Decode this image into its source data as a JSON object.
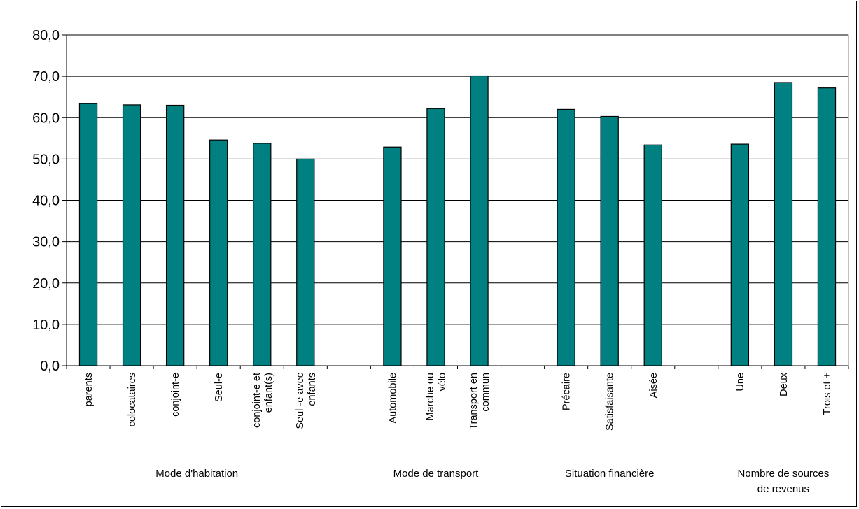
{
  "chart_data": {
    "type": "bar",
    "title": "",
    "xlabel": "",
    "ylabel": "",
    "ylim": [
      0,
      80
    ],
    "yticks": [
      "0,0",
      "10,0",
      "20,0",
      "30,0",
      "40,0",
      "50,0",
      "60,0",
      "70,0",
      "80,0"
    ],
    "grid": true,
    "legend": "none",
    "bar_color": "#008080",
    "groups": [
      {
        "name": "Mode d'habitation",
        "categories": [
          [
            "parents"
          ],
          [
            "colocataires"
          ],
          [
            "conjoint-e"
          ],
          [
            "Seul-e"
          ],
          [
            "conjoint-e et",
            "enfant(s)"
          ],
          [
            "Seul -e avec",
            "enfants"
          ]
        ],
        "values": [
          63.4,
          63.1,
          63.0,
          54.6,
          53.8,
          50.0
        ]
      },
      {
        "name": "Mode de transport",
        "categories": [
          [
            "Automobile"
          ],
          [
            "Marche ou",
            "vélo"
          ],
          [
            "Transport en",
            "commun"
          ]
        ],
        "values": [
          52.9,
          62.2,
          70.1
        ]
      },
      {
        "name": "Situation financière",
        "categories": [
          [
            "Précaire"
          ],
          [
            "Satisfaisante"
          ],
          [
            "Aisée"
          ]
        ],
        "values": [
          62.0,
          60.3,
          53.4
        ]
      },
      {
        "name": "Nombre de sources de revenus",
        "name_lines": [
          "Nombre de sources",
          "de revenus"
        ],
        "categories": [
          [
            "Une"
          ],
          [
            "Deux"
          ],
          [
            "Trois et +"
          ]
        ],
        "values": [
          53.6,
          68.5,
          67.2
        ]
      }
    ]
  }
}
